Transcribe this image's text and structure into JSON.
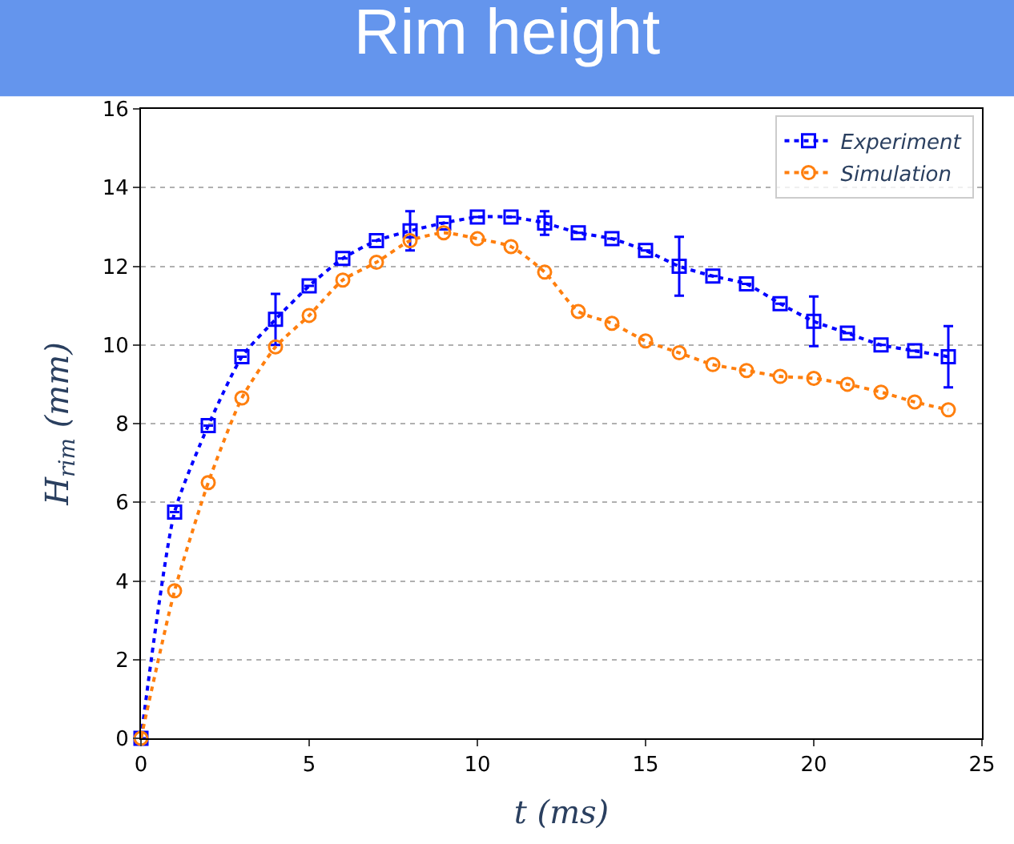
{
  "chart_data": {
    "type": "line",
    "title": "Rim height",
    "xlabel": "t (ms)",
    "ylabel": "H$_{rim}$ (mm)",
    "x": [
      0,
      1,
      2,
      3,
      4,
      5,
      6,
      7,
      8,
      9,
      10,
      11,
      12,
      13,
      14,
      15,
      16,
      17,
      18,
      19,
      20,
      21,
      22,
      23,
      24
    ],
    "series": [
      {
        "name": "Experiment",
        "color": "#0000ff",
        "marker": "square",
        "values": [
          0,
          5.75,
          7.95,
          9.7,
          10.65,
          11.5,
          12.2,
          12.65,
          12.9,
          13.1,
          13.25,
          13.25,
          13.1,
          12.85,
          12.7,
          12.4,
          12.0,
          11.75,
          11.55,
          11.05,
          10.6,
          10.3,
          10.0,
          9.85,
          9.7
        ],
        "errors": [
          null,
          null,
          null,
          null,
          0.65,
          null,
          null,
          null,
          0.5,
          null,
          null,
          null,
          0.3,
          null,
          null,
          null,
          0.75,
          null,
          null,
          null,
          0.63,
          null,
          null,
          null,
          0.78
        ]
      },
      {
        "name": "Simulation",
        "color": "#ff7f0e",
        "marker": "circle",
        "values": [
          0,
          3.75,
          6.5,
          8.65,
          9.95,
          10.75,
          11.65,
          12.1,
          12.65,
          12.85,
          12.7,
          12.5,
          11.85,
          10.85,
          10.55,
          10.1,
          9.8,
          9.5,
          9.35,
          9.2,
          9.15,
          9.0,
          8.8,
          8.55,
          8.35
        ]
      }
    ],
    "xlim": [
      0,
      25
    ],
    "xticks": [
      0,
      5,
      10,
      15,
      20,
      25
    ],
    "ylim": [
      0,
      16
    ],
    "yticks": [
      0,
      2,
      4,
      6,
      8,
      10,
      12,
      14,
      16
    ],
    "grid": "y",
    "legend": "top right",
    "line_style": "dotted"
  }
}
